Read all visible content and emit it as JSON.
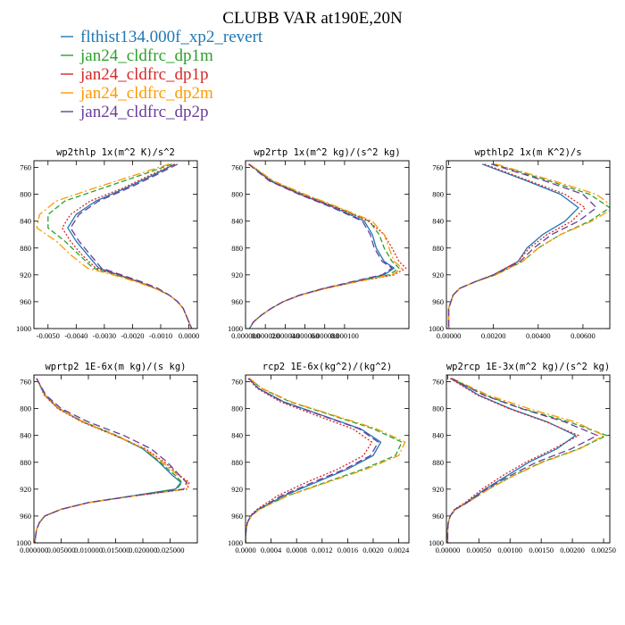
{
  "title": "CLUBB VAR at190E,20N",
  "colors": {
    "s1": "#1f77b4",
    "s2": "#2ca02c",
    "s3": "#d62728",
    "s4": "#ff9900",
    "s5": "#6a3d9a"
  },
  "legend": [
    {
      "label": "flthist134.000f_xp2_revert",
      "color": "#1f77b4"
    },
    {
      "label": "jan24_cldfrc_dp1m",
      "color": "#2ca02c"
    },
    {
      "label": "jan24_cldfrc_dp1p",
      "color": "#d62728"
    },
    {
      "label": "jan24_cldfrc_dp2m",
      "color": "#ff9900"
    },
    {
      "label": "jan24_cldfrc_dp2p",
      "color": "#6a3d9a"
    }
  ],
  "chart_data": [
    {
      "type": "line",
      "title": "wp2thlp  1x(m^2 K)/s^2",
      "xlim": [
        -0.0055,
        0.0003
      ],
      "ylim": [
        1000,
        750
      ],
      "yticks": [
        "760",
        "800",
        "840",
        "880",
        "920",
        "960",
        "1000"
      ],
      "xticks": [
        "-0.0050",
        "-0.0040",
        "-0.0030",
        "-0.0020",
        "-0.0010",
        "0.0000"
      ],
      "y": [
        755,
        770,
        790,
        810,
        830,
        850,
        870,
        890,
        910,
        920,
        930,
        940,
        950,
        960,
        970,
        980,
        990,
        1000
      ],
      "series": [
        {
          "values": [
            -0.0005,
            -0.0012,
            -0.0022,
            -0.0033,
            -0.004,
            -0.0043,
            -0.004,
            -0.0036,
            -0.0032,
            -0.0025,
            -0.0018,
            -0.0012,
            -0.0007,
            -0.0004,
            -0.0002,
            -0.0001,
            0.0,
            0.0001
          ]
        },
        {
          "values": [
            -0.0006,
            -0.0016,
            -0.003,
            -0.0044,
            -0.005,
            -0.005,
            -0.0044,
            -0.0039,
            -0.0034,
            -0.0026,
            -0.0018,
            -0.0012,
            -0.0007,
            -0.0004,
            -0.0002,
            -0.0001,
            0.0,
            0.0001
          ]
        },
        {
          "values": [
            -0.0005,
            -0.0013,
            -0.0023,
            -0.0035,
            -0.0042,
            -0.0045,
            -0.0042,
            -0.0038,
            -0.0033,
            -0.0025,
            -0.0018,
            -0.0012,
            -0.0007,
            -0.0004,
            -0.0002,
            -0.0001,
            0.0,
            0.0001
          ]
        },
        {
          "values": [
            -0.0007,
            -0.0018,
            -0.0033,
            -0.0047,
            -0.0053,
            -0.0054,
            -0.0047,
            -0.0042,
            -0.0036,
            -0.0027,
            -0.0019,
            -0.0012,
            -0.0007,
            -0.0004,
            -0.0002,
            -0.0001,
            0.0,
            0.0001
          ]
        },
        {
          "values": [
            -0.0004,
            -0.0011,
            -0.0021,
            -0.0032,
            -0.0039,
            -0.0042,
            -0.0039,
            -0.0035,
            -0.0031,
            -0.0024,
            -0.0017,
            -0.0011,
            -0.0007,
            -0.0004,
            -0.0002,
            -0.0001,
            0.0,
            0.0001
          ]
        }
      ]
    },
    {
      "type": "line",
      "title": "wp2rtp  1x(m^2 kg)/(s^2 kg)",
      "xlim": [
        0,
        0.000165
      ],
      "ylim": [
        1000,
        750
      ],
      "yticks": [
        "760",
        "800",
        "840",
        "880",
        "920",
        "960",
        "1000"
      ],
      "xticks": [
        "0.000000",
        "0.000020",
        "0.000040",
        "0.000060",
        "0.000080",
        "0.000100"
      ],
      "y": [
        755,
        780,
        800,
        820,
        840,
        860,
        880,
        900,
        910,
        920,
        930,
        940,
        950,
        960,
        970,
        980,
        990,
        1000
      ],
      "series": [
        {
          "values": [
            4e-06,
            2.5e-05,
            5.5e-05,
            9e-05,
            0.00012,
            0.000128,
            0.000132,
            0.00014,
            0.00015,
            0.00014,
            0.00011,
            8e-05,
            5.5e-05,
            3.8e-05,
            2.6e-05,
            1.6e-05,
            8e-06,
            4e-06
          ]
        },
        {
          "values": [
            4e-06,
            2.7e-05,
            5.8e-05,
            9.3e-05,
            0.000125,
            0.000135,
            0.00014,
            0.000148,
            0.000155,
            0.000145,
            0.000112,
            8.1e-05,
            5.6e-05,
            3.8e-05,
            2.6e-05,
            1.6e-05,
            8e-06,
            4e-06
          ]
        },
        {
          "values": [
            4e-06,
            2.6e-05,
            5.7e-05,
            9.2e-05,
            0.000124,
            0.00014,
            0.000148,
            0.000155,
            0.000162,
            0.00015,
            0.000113,
            8.1e-05,
            5.6e-05,
            3.8e-05,
            2.6e-05,
            1.6e-05,
            8e-06,
            4e-06
          ]
        },
        {
          "values": [
            4e-06,
            2.8e-05,
            6e-05,
            9.5e-05,
            0.000128,
            0.00014,
            0.000145,
            0.00015,
            0.000158,
            0.000148,
            0.000113,
            8.1e-05,
            5.6e-05,
            3.8e-05,
            2.6e-05,
            1.6e-05,
            8e-06,
            4e-06
          ]
        },
        {
          "values": [
            3e-06,
            2.4e-05,
            5.4e-05,
            8.8e-05,
            0.000118,
            0.000126,
            0.00013,
            0.000138,
            0.000148,
            0.000138,
            0.000108,
            7.9e-05,
            5.5e-05,
            3.8e-05,
            2.6e-05,
            1.6e-05,
            8e-06,
            4e-06
          ]
        }
      ]
    },
    {
      "type": "line",
      "title": "wpthlp2  1x(m K^2)/s",
      "xlim": [
        -0.0001,
        0.0072
      ],
      "ylim": [
        1000,
        750
      ],
      "yticks": [
        "760",
        "800",
        "840",
        "880",
        "920",
        "960",
        "1000"
      ],
      "xticks": [
        "0.00000",
        "0.00200",
        "0.00400",
        "0.00600"
      ],
      "y": [
        755,
        780,
        800,
        820,
        840,
        860,
        880,
        900,
        920,
        930,
        940,
        950,
        960,
        970,
        980,
        990,
        1000
      ],
      "series": [
        {
          "values": [
            0.0015,
            0.0035,
            0.005,
            0.0058,
            0.0052,
            0.0042,
            0.0035,
            0.0031,
            0.002,
            0.0012,
            0.0005,
            0.0002,
            0.0001,
            0.0,
            0.0,
            0.0,
            0.0
          ]
        },
        {
          "values": [
            0.002,
            0.0045,
            0.0063,
            0.0072,
            0.0063,
            0.005,
            0.004,
            0.0033,
            0.0021,
            0.0012,
            0.0005,
            0.0002,
            0.0001,
            0.0,
            0.0,
            0.0,
            0.0
          ]
        },
        {
          "values": [
            0.0016,
            0.0036,
            0.0052,
            0.0061,
            0.0055,
            0.0044,
            0.0036,
            0.0031,
            0.002,
            0.0012,
            0.0005,
            0.0002,
            0.0001,
            0.0,
            0.0,
            0.0,
            0.0
          ]
        },
        {
          "values": [
            0.0021,
            0.0047,
            0.0066,
            0.0074,
            0.0064,
            0.005,
            0.004,
            0.0033,
            0.0021,
            0.0012,
            0.0005,
            0.0002,
            0.0001,
            0.0,
            0.0,
            0.0,
            0.0
          ]
        },
        {
          "values": [
            0.0019,
            0.0043,
            0.006,
            0.0066,
            0.0058,
            0.0046,
            0.0038,
            0.0032,
            0.002,
            0.0012,
            0.0005,
            0.0002,
            0.0001,
            0.0,
            0.0,
            0.0,
            0.0
          ]
        }
      ]
    },
    {
      "type": "line",
      "title": "wprtp2  1E-6x(m kg)/(s kg)",
      "xlim": [
        0,
        0.03
      ],
      "ylim": [
        1000,
        750
      ],
      "yticks": [
        "760",
        "800",
        "840",
        "880",
        "920",
        "960",
        "1000"
      ],
      "xticks": [
        "0.000000",
        "0.005000",
        "0.010000",
        "0.015000",
        "0.020000",
        "0.025000"
      ],
      "y": [
        755,
        780,
        800,
        820,
        840,
        860,
        880,
        900,
        910,
        920,
        930,
        940,
        950,
        960,
        970,
        980,
        990,
        1000
      ],
      "series": [
        {
          "values": [
            0.0005,
            0.002,
            0.0045,
            0.009,
            0.015,
            0.02,
            0.023,
            0.0255,
            0.027,
            0.026,
            0.018,
            0.01,
            0.005,
            0.002,
            0.001,
            0.0005,
            0.0003,
            0.0002
          ]
        },
        {
          "values": [
            0.0005,
            0.0021,
            0.0046,
            0.0092,
            0.0152,
            0.0202,
            0.0232,
            0.026,
            0.0272,
            0.0262,
            0.0181,
            0.01,
            0.005,
            0.002,
            0.001,
            0.0005,
            0.0003,
            0.0002
          ]
        },
        {
          "values": [
            0.0005,
            0.0019,
            0.0044,
            0.0088,
            0.0148,
            0.0205,
            0.024,
            0.0268,
            0.0285,
            0.0282,
            0.0185,
            0.0101,
            0.005,
            0.002,
            0.001,
            0.0005,
            0.0003,
            0.0002
          ]
        },
        {
          "values": [
            0.0005,
            0.0021,
            0.0046,
            0.0091,
            0.015,
            0.0203,
            0.0236,
            0.0265,
            0.0282,
            0.028,
            0.0184,
            0.0101,
            0.005,
            0.002,
            0.001,
            0.0005,
            0.0003,
            0.0002
          ]
        },
        {
          "values": [
            0.0005,
            0.0022,
            0.005,
            0.01,
            0.0165,
            0.0215,
            0.0245,
            0.0268,
            0.028,
            0.0275,
            0.0183,
            0.01,
            0.005,
            0.002,
            0.001,
            0.0005,
            0.0003,
            0.0002
          ]
        }
      ]
    },
    {
      "type": "line",
      "title": "rcp2  1E-6x(kg^2)/(kg^2)",
      "xlim": [
        0,
        0.00256
      ],
      "ylim": [
        1000,
        750
      ],
      "yticks": [
        "760",
        "800",
        "840",
        "880",
        "920",
        "960",
        "1000"
      ],
      "xticks": [
        "0.0000",
        "0.0004",
        "0.0008",
        "0.0012",
        "0.0016",
        "0.0020",
        "0.0024"
      ],
      "y": [
        755,
        770,
        790,
        810,
        830,
        850,
        870,
        890,
        910,
        930,
        950,
        960,
        970,
        980,
        990,
        1000
      ],
      "series": [
        {
          "values": [
            5e-05,
            0.0002,
            0.0006,
            0.0012,
            0.0018,
            0.00212,
            0.002,
            0.0016,
            0.0011,
            0.0006,
            0.0002,
            8e-05,
            3e-05,
            1e-05,
            0.0,
            0.0
          ]
        },
        {
          "values": [
            6e-05,
            0.00025,
            0.0007,
            0.00135,
            0.002,
            0.00245,
            0.00235,
            0.00185,
            0.00125,
            0.00065,
            0.00022,
            9e-05,
            3e-05,
            1e-05,
            0.0,
            0.0
          ]
        },
        {
          "values": [
            4e-05,
            0.00018,
            0.00055,
            0.0011,
            0.00168,
            0.00198,
            0.00185,
            0.00145,
            0.00095,
            0.0005,
            0.00018,
            7e-05,
            3e-05,
            1e-05,
            0.0,
            0.0
          ]
        },
        {
          "values": [
            6e-05,
            0.00026,
            0.00072,
            0.00138,
            0.00205,
            0.0025,
            0.0024,
            0.0019,
            0.00128,
            0.00066,
            0.00022,
            9e-05,
            3e-05,
            1e-05,
            0.0,
            0.0
          ]
        },
        {
          "values": [
            5e-05,
            0.0002,
            0.00058,
            0.00118,
            0.00178,
            0.00208,
            0.00196,
            0.00156,
            0.00105,
            0.00056,
            0.0002,
            8e-05,
            3e-05,
            1e-05,
            0.0,
            0.0
          ]
        }
      ]
    },
    {
      "type": "line",
      "title": "wp2rcp  1E-3x(m^2 kg)/(s^2 kg)",
      "xlim": [
        -2e-05,
        0.0026
      ],
      "ylim": [
        1000,
        750
      ],
      "yticks": [
        "760",
        "800",
        "840",
        "880",
        "920",
        "960",
        "1000"
      ],
      "xticks": [
        "0.00000",
        "0.00050",
        "0.00100",
        "0.00150",
        "0.00200",
        "0.00250"
      ],
      "y": [
        755,
        780,
        800,
        820,
        840,
        860,
        880,
        900,
        920,
        940,
        950,
        960,
        970,
        980,
        990,
        1000
      ],
      "series": [
        {
          "values": [
            5e-05,
            0.0005,
            0.001,
            0.0016,
            0.00205,
            0.00175,
            0.0013,
            0.00095,
            0.0006,
            0.0003,
            0.00012,
            4e-05,
            1e-05,
            0.0,
            0.0,
            0.0
          ]
        },
        {
          "values": [
            6e-05,
            0.0006,
            0.0012,
            0.00195,
            0.00255,
            0.0021,
            0.0015,
            0.00105,
            0.00065,
            0.00032,
            0.00013,
            4e-05,
            1e-05,
            0.0,
            0.0,
            0.0
          ]
        },
        {
          "values": [
            4e-05,
            0.00048,
            0.00098,
            0.00158,
            0.0021,
            0.0017,
            0.00125,
            0.00088,
            0.00055,
            0.00028,
            0.00011,
            4e-05,
            1e-05,
            0.0,
            0.0,
            0.0
          ]
        },
        {
          "values": [
            7e-05,
            0.00065,
            0.0013,
            0.00205,
            0.0025,
            0.00212,
            0.00152,
            0.00106,
            0.00066,
            0.00032,
            0.00013,
            4e-05,
            1e-05,
            0.0,
            0.0,
            0.0
          ]
        },
        {
          "values": [
            6e-05,
            0.00058,
            0.00118,
            0.00188,
            0.0024,
            0.00198,
            0.00142,
            0.001,
            0.00062,
            0.00031,
            0.00012,
            4e-05,
            1e-05,
            0.0,
            0.0,
            0.0
          ]
        }
      ]
    }
  ]
}
